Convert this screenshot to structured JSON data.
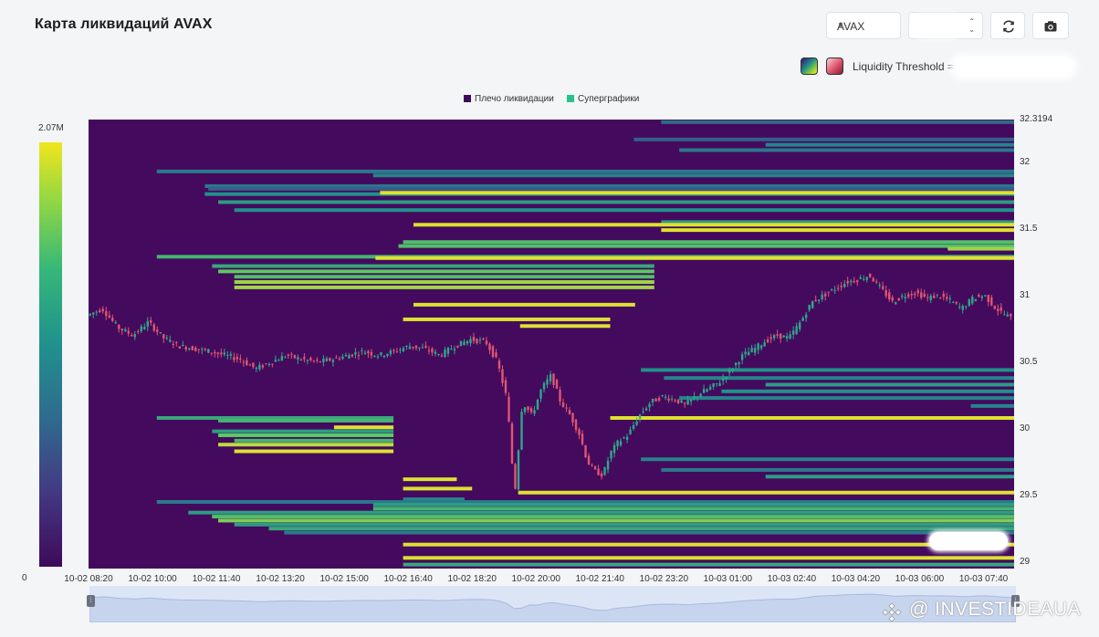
{
  "header": {
    "title": "Карта ликвидаций AVAX",
    "symbol_select": "AVAX",
    "threshold_label": "Liquidity Threshold ="
  },
  "colors": {
    "heatmap_background": "#440a5e",
    "candle_up": "#2ea88a",
    "candle_down": "#e0566f",
    "band_yellow": "#f5ea14",
    "navigator": "#dbe5f6"
  },
  "icons": [
    "caret-down-icon",
    "updown-arrows-icon",
    "refresh-icon",
    "camera-icon",
    "viridis-palette-icon",
    "red-palette-icon",
    "navigator-handle-icon",
    "binance-icon"
  ],
  "legend": {
    "series1": "Плечо ликвидации",
    "series2": "Суперграфики",
    "series1_color": "#3e0a5b",
    "series2_color": "#27c48a"
  },
  "colorbar": {
    "max_label": "2.07M",
    "min_label": "0"
  },
  "watermark": "@ INVESTIDEAUA",
  "chart_data": {
    "type": "heatmap",
    "title": "Карта ликвидаций AVAX",
    "ylim": [
      28.95,
      32.3194
    ],
    "y_ticks": [
      "32.3194",
      "32",
      "31.5",
      "31",
      "30.5",
      "30",
      "29.5",
      "29"
    ],
    "x_ticks": [
      "10-02 08:20",
      "10-02 10:00",
      "10-02 11:40",
      "10-02 13:20",
      "10-02 15:00",
      "10-02 16:40",
      "10-02 18:20",
      "10-02 20:00",
      "10-02 21:40",
      "10-02 23:20",
      "10-03 01:00",
      "10-03 02:40",
      "10-03 04:20",
      "10-03 06:00",
      "10-03 07:40"
    ],
    "x_range_hours": [
      0,
      24.13
    ],
    "colorbar_range": [
      0,
      2070000
    ],
    "liquidation_levels": [
      {
        "price": 32.3,
        "start": 14.93,
        "intensity": 0.35
      },
      {
        "price": 32.17,
        "start": 14.22,
        "intensity": 0.3
      },
      {
        "price": 32.13,
        "start": 17.65,
        "intensity": 0.45
      },
      {
        "price": 32.09,
        "start": 15.4,
        "intensity": 0.4
      },
      {
        "price": 31.93,
        "start": 1.78,
        "intensity": 0.4
      },
      {
        "price": 31.9,
        "start": 7.42,
        "intensity": 0.45
      },
      {
        "price": 31.82,
        "start": 3.03,
        "intensity": 0.4
      },
      {
        "price": 31.8,
        "start": 3.12,
        "intensity": 0.3
      },
      {
        "price": 31.76,
        "start": 3.03,
        "intensity": 0.5
      },
      {
        "price": 31.77,
        "start": 7.6,
        "intensity": 0.95
      },
      {
        "price": 31.7,
        "start": 3.38,
        "intensity": 0.55
      },
      {
        "price": 31.64,
        "start": 3.8,
        "intensity": 0.5
      },
      {
        "price": 31.55,
        "start": 14.93,
        "intensity": 0.55
      },
      {
        "price": 31.53,
        "start": 8.47,
        "intensity": 0.95
      },
      {
        "price": 31.49,
        "start": 14.93,
        "intensity": 0.95
      },
      {
        "price": 31.4,
        "start": 8.2,
        "intensity": 0.7
      },
      {
        "price": 31.37,
        "start": 8.08,
        "intensity": 0.7
      },
      {
        "price": 31.35,
        "start": 22.4,
        "intensity": 0.85
      },
      {
        "price": 31.29,
        "start": 1.78,
        "intensity": 0.65
      },
      {
        "price": 31.28,
        "start": 7.48,
        "intensity": 0.95
      },
      {
        "price": 31.22,
        "start": 3.22,
        "intensity": 0.6,
        "end": 14.75
      },
      {
        "price": 31.18,
        "start": 3.38,
        "intensity": 0.75,
        "end": 14.75
      },
      {
        "price": 31.14,
        "start": 3.8,
        "intensity": 0.7,
        "end": 14.75
      },
      {
        "price": 31.1,
        "start": 3.8,
        "intensity": 0.85,
        "end": 14.75
      },
      {
        "price": 31.06,
        "start": 3.8,
        "intensity": 0.85,
        "end": 14.75
      },
      {
        "price": 30.93,
        "start": 8.47,
        "intensity": 0.95,
        "end": 14.25
      },
      {
        "price": 30.82,
        "start": 8.2,
        "intensity": 0.95,
        "end": 13.6
      },
      {
        "price": 30.77,
        "start": 11.25,
        "intensity": 0.95,
        "end": 13.6
      },
      {
        "price": 30.44,
        "start": 14.4,
        "intensity": 0.5
      },
      {
        "price": 30.38,
        "start": 15.0,
        "intensity": 0.45
      },
      {
        "price": 30.33,
        "start": 17.65,
        "intensity": 0.55
      },
      {
        "price": 30.28,
        "start": 16.5,
        "intensity": 0.5
      },
      {
        "price": 30.23,
        "start": 15.4,
        "intensity": 0.45
      },
      {
        "price": 30.17,
        "start": 23.0,
        "intensity": 0.45
      },
      {
        "price": 30.08,
        "start": 13.6,
        "intensity": 0.95
      },
      {
        "price": 30.08,
        "start": 1.78,
        "intensity": 0.6,
        "end": 7.95
      },
      {
        "price": 30.06,
        "start": 3.38,
        "intensity": 0.65,
        "end": 7.95
      },
      {
        "price": 30.01,
        "start": 6.4,
        "intensity": 0.95,
        "end": 7.95
      },
      {
        "price": 29.98,
        "start": 3.22,
        "intensity": 0.55,
        "end": 7.95
      },
      {
        "price": 29.95,
        "start": 3.38,
        "intensity": 0.75,
        "end": 7.95
      },
      {
        "price": 29.91,
        "start": 3.8,
        "intensity": 0.65,
        "end": 7.95
      },
      {
        "price": 29.88,
        "start": 3.38,
        "intensity": 0.9,
        "end": 7.95
      },
      {
        "price": 29.83,
        "start": 3.8,
        "intensity": 0.95,
        "end": 7.95
      },
      {
        "price": 29.77,
        "start": 14.4,
        "intensity": 0.45
      },
      {
        "price": 29.69,
        "start": 14.93,
        "intensity": 0.4
      },
      {
        "price": 29.64,
        "start": 17.65,
        "intensity": 0.55
      },
      {
        "price": 29.62,
        "start": 8.2,
        "intensity": 0.95,
        "end": 9.6
      },
      {
        "price": 29.55,
        "start": 8.2,
        "intensity": 0.95,
        "end": 10.0
      },
      {
        "price": 29.52,
        "start": 11.2,
        "intensity": 0.95
      },
      {
        "price": 29.47,
        "start": 8.2,
        "intensity": 0.45,
        "end": 9.8
      },
      {
        "price": 29.45,
        "start": 1.78,
        "intensity": 0.4
      },
      {
        "price": 29.43,
        "start": 7.42,
        "intensity": 0.55
      },
      {
        "price": 29.4,
        "start": 7.42,
        "intensity": 0.65
      },
      {
        "price": 29.37,
        "start": 2.6,
        "intensity": 0.55
      },
      {
        "price": 29.34,
        "start": 3.22,
        "intensity": 0.7
      },
      {
        "price": 29.31,
        "start": 3.38,
        "intensity": 0.8
      },
      {
        "price": 29.28,
        "start": 3.8,
        "intensity": 0.55
      },
      {
        "price": 29.25,
        "start": 4.7,
        "intensity": 0.6
      },
      {
        "price": 29.22,
        "start": 5.1,
        "intensity": 0.4
      },
      {
        "price": 29.13,
        "start": 8.2,
        "intensity": 0.95
      },
      {
        "price": 29.03,
        "start": 8.2,
        "intensity": 0.95
      },
      {
        "price": 28.98,
        "start": 8.2,
        "intensity": 0.6
      }
    ],
    "price_path": [
      [
        0.0,
        30.85
      ],
      [
        0.4,
        30.9
      ],
      [
        0.8,
        30.76
      ],
      [
        1.2,
        30.7
      ],
      [
        1.6,
        30.8
      ],
      [
        2.0,
        30.68
      ],
      [
        2.4,
        30.62
      ],
      [
        2.8,
        30.6
      ],
      [
        3.2,
        30.58
      ],
      [
        3.6,
        30.55
      ],
      [
        4.0,
        30.52
      ],
      [
        4.4,
        30.45
      ],
      [
        4.8,
        30.5
      ],
      [
        5.2,
        30.55
      ],
      [
        5.6,
        30.52
      ],
      [
        6.0,
        30.5
      ],
      [
        6.4,
        30.52
      ],
      [
        6.8,
        30.55
      ],
      [
        7.2,
        30.58
      ],
      [
        7.6,
        30.55
      ],
      [
        8.0,
        30.58
      ],
      [
        8.4,
        30.62
      ],
      [
        8.8,
        30.6
      ],
      [
        9.2,
        30.55
      ],
      [
        9.6,
        30.62
      ],
      [
        10.0,
        30.67
      ],
      [
        10.4,
        30.65
      ],
      [
        10.7,
        30.5
      ],
      [
        10.95,
        30.22
      ],
      [
        11.15,
        29.5
      ],
      [
        11.35,
        30.2
      ],
      [
        11.6,
        30.1
      ],
      [
        11.85,
        30.3
      ],
      [
        12.1,
        30.4
      ],
      [
        12.35,
        30.2
      ],
      [
        12.6,
        30.1
      ],
      [
        12.85,
        29.95
      ],
      [
        13.05,
        29.75
      ],
      [
        13.25,
        29.68
      ],
      [
        13.45,
        29.65
      ],
      [
        13.65,
        29.82
      ],
      [
        13.85,
        29.9
      ],
      [
        14.1,
        29.95
      ],
      [
        14.4,
        30.1
      ],
      [
        14.7,
        30.2
      ],
      [
        15.0,
        30.24
      ],
      [
        15.3,
        30.22
      ],
      [
        15.6,
        30.18
      ],
      [
        15.9,
        30.25
      ],
      [
        16.2,
        30.3
      ],
      [
        16.5,
        30.35
      ],
      [
        16.8,
        30.45
      ],
      [
        17.1,
        30.55
      ],
      [
        17.4,
        30.6
      ],
      [
        17.7,
        30.66
      ],
      [
        18.0,
        30.7
      ],
      [
        18.3,
        30.68
      ],
      [
        18.6,
        30.8
      ],
      [
        18.9,
        30.95
      ],
      [
        19.2,
        31.0
      ],
      [
        19.5,
        31.05
      ],
      [
        19.8,
        31.1
      ],
      [
        20.1,
        31.12
      ],
      [
        20.4,
        31.15
      ],
      [
        20.7,
        31.05
      ],
      [
        21.0,
        30.95
      ],
      [
        21.3,
        31.0
      ],
      [
        21.6,
        31.02
      ],
      [
        21.9,
        30.98
      ],
      [
        22.2,
        31.0
      ],
      [
        22.5,
        30.96
      ],
      [
        22.8,
        30.9
      ],
      [
        23.1,
        30.98
      ],
      [
        23.4,
        31.0
      ],
      [
        23.7,
        30.9
      ],
      [
        24.13,
        30.82
      ]
    ]
  }
}
